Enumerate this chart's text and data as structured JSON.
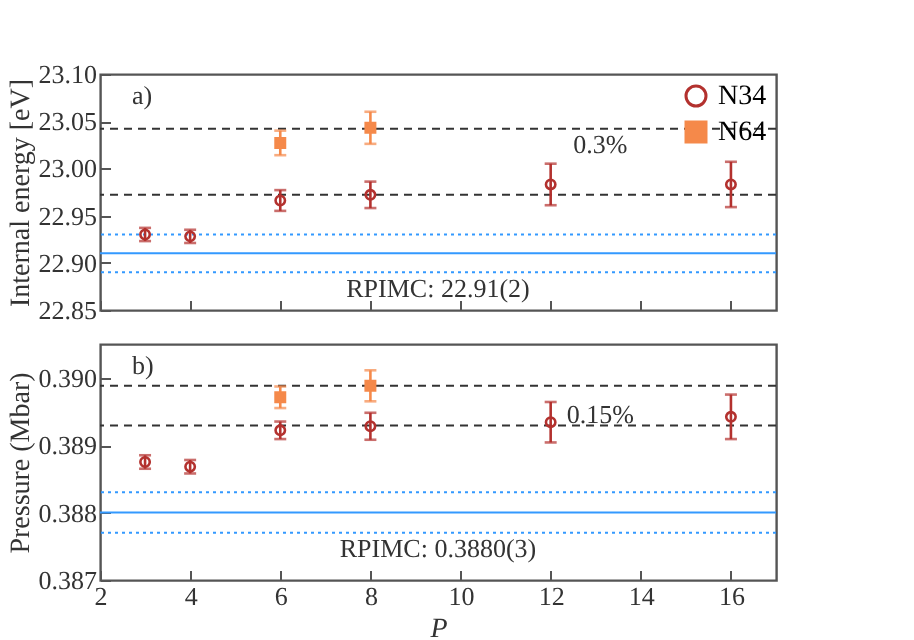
{
  "chart_data": [
    {
      "type": "scatter",
      "ylabel": "Internal energy [eV]",
      "xlim": [
        2,
        17
      ],
      "xticks": [
        2,
        4,
        6,
        8,
        10,
        12,
        14,
        16
      ],
      "ylim": [
        22.85,
        23.1
      ],
      "yticks": [
        22.85,
        {
          "value": 22.9,
          "label": "22.90"
        },
        22.95,
        {
          "value": 23.0,
          "label": "23.00"
        },
        23.05,
        {
          "value": 23.1,
          "label": "23.10"
        }
      ],
      "tick_labels": "y",
      "legend": "top right",
      "series": [
        {
          "name": "N34",
          "color": "#b3312e",
          "marker": "circle",
          "x": [
            3,
            4,
            6,
            8,
            12,
            16
          ],
          "values": [
            22.93,
            22.928,
            22.966,
            22.972,
            22.983,
            22.983
          ],
          "errors": [
            0.007,
            0.007,
            0.011,
            0.014,
            0.022,
            0.024
          ]
        },
        {
          "name": "N64",
          "color": "#f5894a",
          "marker": "square",
          "x": [
            6,
            8
          ],
          "values": [
            23.027,
            23.043
          ],
          "errors": [
            0.013,
            0.017
          ]
        }
      ],
      "ref_lines": [
        {
          "axis": "y",
          "value": 23.042,
          "color": "#333333",
          "line_style": "dashed"
        },
        {
          "axis": "y",
          "value": 22.972,
          "color": "#333333",
          "line_style": "dashed"
        },
        {
          "axis": "y",
          "value": 22.91,
          "color": "#3399ff",
          "line_style": "solid",
          "label": "RPIMC: 22.91(2)"
        },
        {
          "axis": "y",
          "value": 22.93,
          "color": "#3399ff",
          "line_style": "dotted"
        },
        {
          "axis": "y",
          "value": 22.89,
          "color": "#3399ff",
          "line_style": "dotted"
        }
      ],
      "annotations": [
        "a)",
        "0.3%"
      ]
    },
    {
      "type": "scatter",
      "xlabel": "P",
      "ylabel": "Pressure (Mbar)",
      "xlim": [
        2,
        17
      ],
      "xticks": [
        2,
        4,
        6,
        8,
        10,
        12,
        14,
        16
      ],
      "ylim": [
        0.387,
        0.3905
      ],
      "yticks": [
        0.387,
        0.388,
        0.389,
        {
          "value": 0.39,
          "label": "0.390"
        }
      ],
      "series": [
        {
          "color": "#b3312e",
          "marker": "circle",
          "x": [
            3,
            4,
            6,
            8,
            12,
            16
          ],
          "values": [
            0.38875,
            0.38868,
            0.38922,
            0.38928,
            0.38934,
            0.38942
          ],
          "errors": [
            0.0001,
            0.0001,
            0.00013,
            0.0002,
            0.0003,
            0.00033
          ]
        },
        {
          "color": "#f5894a",
          "marker": "square",
          "x": [
            6,
            8
          ],
          "values": [
            0.38971,
            0.38988
          ],
          "errors": [
            0.00016,
            0.00023
          ]
        }
      ],
      "ref_lines": [
        {
          "axis": "y",
          "value": 0.38988,
          "color": "#333333",
          "line_style": "dashed"
        },
        {
          "axis": "y",
          "value": 0.38929,
          "color": "#333333",
          "line_style": "dashed"
        },
        {
          "axis": "y",
          "value": 0.388,
          "color": "#3399ff",
          "line_style": "solid",
          "label": "RPIMC: 0.3880(3)"
        },
        {
          "axis": "y",
          "value": 0.3883,
          "color": "#3399ff",
          "line_style": "dotted"
        },
        {
          "axis": "y",
          "value": 0.3877,
          "color": "#3399ff",
          "line_style": "dotted"
        }
      ],
      "annotations": [
        "b)",
        "0.15%"
      ]
    }
  ]
}
